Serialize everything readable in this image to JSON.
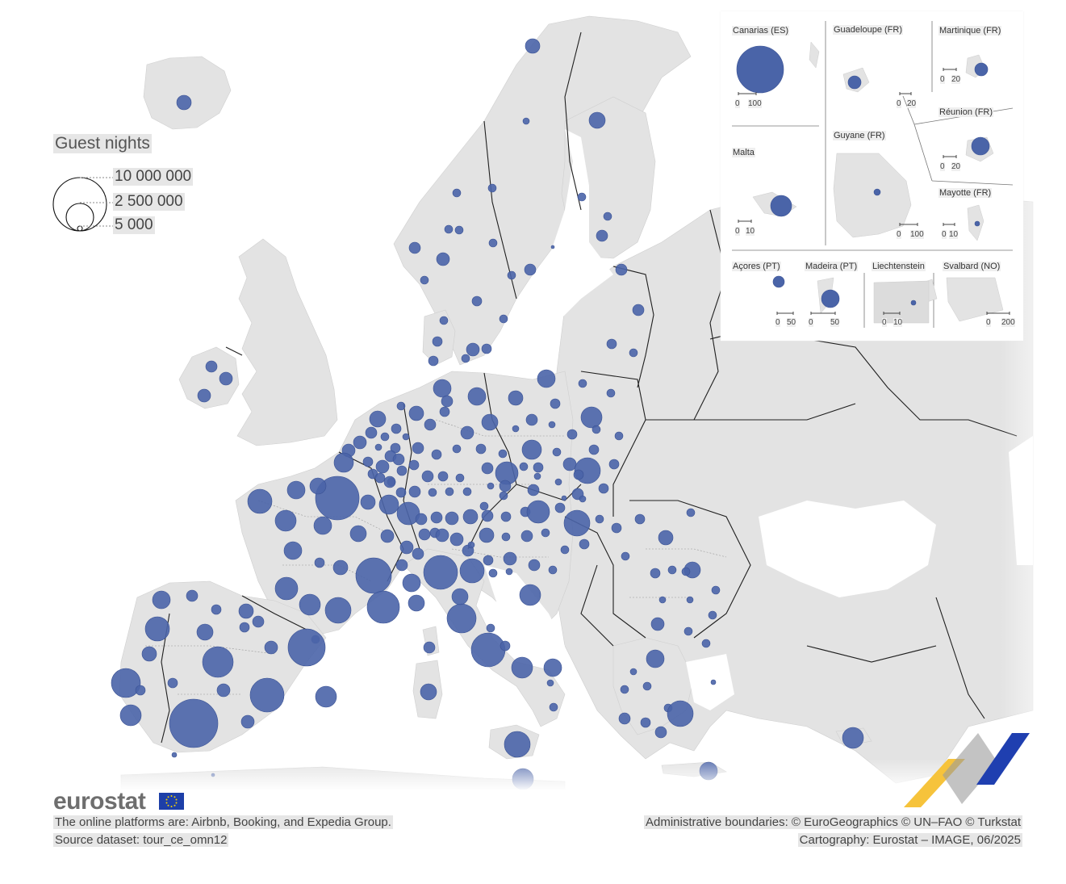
{
  "legend": {
    "title": "Guest nights",
    "sizes": [
      "10 000 000",
      "2 500 000",
      "5 000"
    ]
  },
  "branding": {
    "logo": "eurostat"
  },
  "footer": {
    "platforms": "The online platforms are: Airbnb, Booking, and Expedia Group.",
    "source": "Source dataset: tour_ce_omn12",
    "boundaries": "Administrative boundaries: © EuroGeographics © UN–FAO © Turkstat",
    "cartography": "Cartography: Eurostat – IMAGE, 06/2025"
  },
  "insets": [
    {
      "name": "Canarias (ES)",
      "scale": [
        "0",
        "100"
      ]
    },
    {
      "name": "Guadeloupe (FR)",
      "scale": [
        "0",
        "20"
      ]
    },
    {
      "name": "Martinique (FR)",
      "scale": [
        "0",
        "20"
      ]
    },
    {
      "name": "Réunion (FR)",
      "scale": [
        "0",
        "20"
      ]
    },
    {
      "name": "Malta",
      "scale": [
        "0",
        "10"
      ]
    },
    {
      "name": "Guyane (FR)",
      "scale": [
        "0",
        "100"
      ]
    },
    {
      "name": "Mayotte (FR)",
      "scale": [
        "0",
        "10"
      ]
    },
    {
      "name": "Açores (PT)",
      "scale": [
        "0",
        "50"
      ]
    },
    {
      "name": "Madeira (PT)",
      "scale": [
        "0",
        "50"
      ]
    },
    {
      "name": "Liechtenstein",
      "scale": [
        "0",
        "10"
      ]
    },
    {
      "name": "Svalbard (NO)",
      "scale": [
        "0",
        "200"
      ]
    }
  ],
  "colors": {
    "bubble": "#4a64a8",
    "land": "#e3e3e3",
    "sea": "#ffffff",
    "border": "#1a1a1a"
  }
}
